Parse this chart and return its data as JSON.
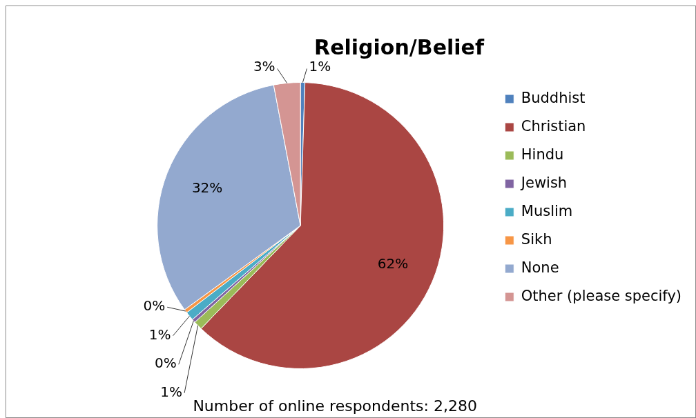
{
  "chart_data": {
    "type": "pie",
    "title": "Religion/Belief",
    "categories": [
      "Buddhist",
      "Christian",
      "Hindu",
      "Jewish",
      "Muslim",
      "Sikh",
      "None",
      "Other (please specify)"
    ],
    "values": [
      0.5,
      61.7,
      1,
      0.4,
      1,
      0.4,
      32,
      3
    ],
    "value_labels": [
      "1%",
      "62%",
      "1%",
      "0%",
      "1%",
      "0%",
      "32%",
      "3%"
    ],
    "colors": [
      "#4f81bd",
      "#aa4643",
      "#9bbb59",
      "#8064a2",
      "#4bacc6",
      "#f79646",
      "#93a9cf",
      "#d49593"
    ],
    "legend": "right",
    "annotations": [
      "Number of online respondents: 2,280"
    ]
  }
}
